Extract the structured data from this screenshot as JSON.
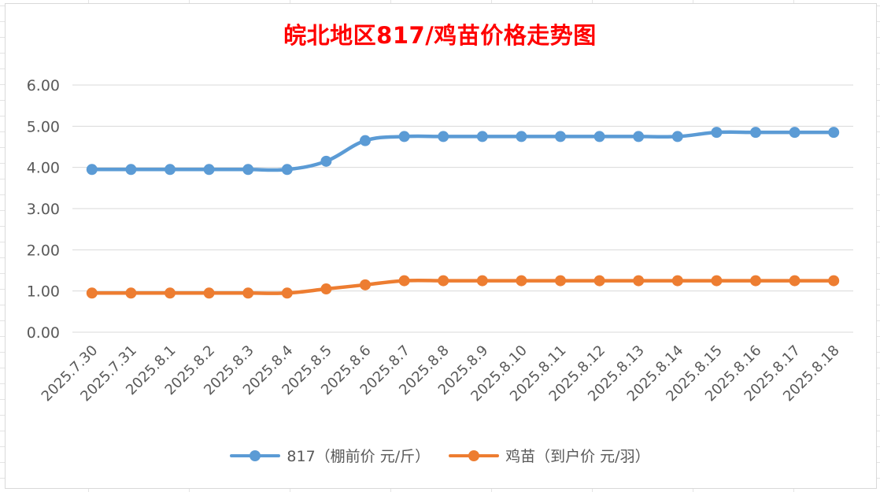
{
  "chart_data": {
    "type": "line",
    "title": "皖北地区817/鸡苗价格走势图",
    "categories": [
      "2025.7.30",
      "2025.7.31",
      "2025.8.1",
      "2025.8.2",
      "2025.8.3",
      "2025.8.4",
      "2025.8.5",
      "2025.8.6",
      "2025.8.7",
      "2025.8.8",
      "2025.8.9",
      "2025.8.10",
      "2025.8.11",
      "2025.8.12",
      "2025.8.13",
      "2025.8.14",
      "2025.8.15",
      "2025.8.16",
      "2025.8.17",
      "2025.8.18"
    ],
    "yticks": [
      "0.00",
      "1.00",
      "2.00",
      "3.00",
      "4.00",
      "5.00",
      "6.00"
    ],
    "ylim": [
      0,
      6
    ],
    "grid": true,
    "legend_position": "bottom",
    "series": [
      {
        "name": "817（棚前价 元/斤）",
        "color": "#5b9bd5",
        "values": [
          3.95,
          3.95,
          3.95,
          3.95,
          3.95,
          3.95,
          4.15,
          4.65,
          4.75,
          4.75,
          4.75,
          4.75,
          4.75,
          4.75,
          4.75,
          4.75,
          4.85,
          4.85,
          4.85,
          4.85
        ]
      },
      {
        "name": "鸡苗（到户价 元/羽）",
        "color": "#ed7d31",
        "values": [
          0.95,
          0.95,
          0.95,
          0.95,
          0.95,
          0.95,
          1.05,
          1.15,
          1.25,
          1.25,
          1.25,
          1.25,
          1.25,
          1.25,
          1.25,
          1.25,
          1.25,
          1.25,
          1.25,
          1.25
        ]
      }
    ]
  }
}
